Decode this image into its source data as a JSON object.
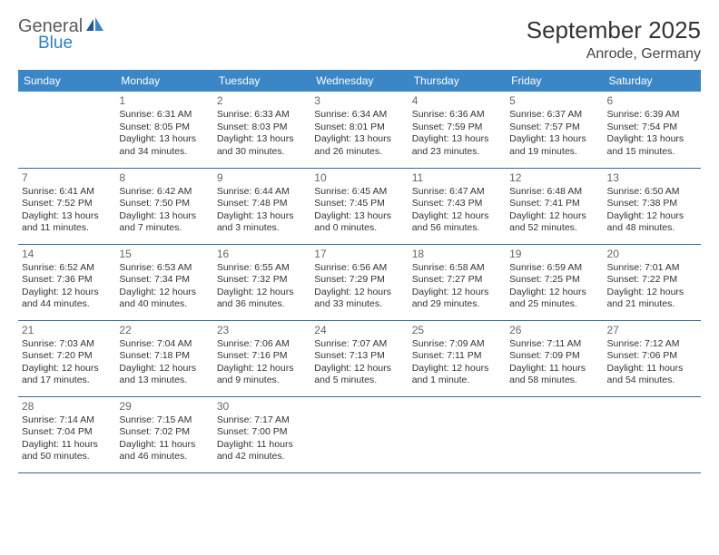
{
  "logo": {
    "line1": "General",
    "line2": "Blue"
  },
  "title": "September 2025",
  "location": "Anrode, Germany",
  "colors": {
    "header_bg": "#3b86c6",
    "header_text": "#ffffff",
    "row_border": "#2f6aa0",
    "title_color": "#333333",
    "location_color": "#444444",
    "logo_gray": "#5a5a5a",
    "logo_blue": "#2f7fc2",
    "daynum_color": "#666666",
    "body_text": "#333333",
    "page_bg": "#ffffff"
  },
  "typography": {
    "title_fontsize": 26,
    "location_fontsize": 16,
    "dayheader_fontsize": 12,
    "daynum_fontsize": 12,
    "cell_fontsize": 10.5
  },
  "days_of_week": [
    "Sunday",
    "Monday",
    "Tuesday",
    "Wednesday",
    "Thursday",
    "Friday",
    "Saturday"
  ],
  "weeks": [
    [
      null,
      {
        "n": "1",
        "sunrise": "Sunrise: 6:31 AM",
        "sunset": "Sunset: 8:05 PM",
        "daylight": "Daylight: 13 hours and 34 minutes."
      },
      {
        "n": "2",
        "sunrise": "Sunrise: 6:33 AM",
        "sunset": "Sunset: 8:03 PM",
        "daylight": "Daylight: 13 hours and 30 minutes."
      },
      {
        "n": "3",
        "sunrise": "Sunrise: 6:34 AM",
        "sunset": "Sunset: 8:01 PM",
        "daylight": "Daylight: 13 hours and 26 minutes."
      },
      {
        "n": "4",
        "sunrise": "Sunrise: 6:36 AM",
        "sunset": "Sunset: 7:59 PM",
        "daylight": "Daylight: 13 hours and 23 minutes."
      },
      {
        "n": "5",
        "sunrise": "Sunrise: 6:37 AM",
        "sunset": "Sunset: 7:57 PM",
        "daylight": "Daylight: 13 hours and 19 minutes."
      },
      {
        "n": "6",
        "sunrise": "Sunrise: 6:39 AM",
        "sunset": "Sunset: 7:54 PM",
        "daylight": "Daylight: 13 hours and 15 minutes."
      }
    ],
    [
      {
        "n": "7",
        "sunrise": "Sunrise: 6:41 AM",
        "sunset": "Sunset: 7:52 PM",
        "daylight": "Daylight: 13 hours and 11 minutes."
      },
      {
        "n": "8",
        "sunrise": "Sunrise: 6:42 AM",
        "sunset": "Sunset: 7:50 PM",
        "daylight": "Daylight: 13 hours and 7 minutes."
      },
      {
        "n": "9",
        "sunrise": "Sunrise: 6:44 AM",
        "sunset": "Sunset: 7:48 PM",
        "daylight": "Daylight: 13 hours and 3 minutes."
      },
      {
        "n": "10",
        "sunrise": "Sunrise: 6:45 AM",
        "sunset": "Sunset: 7:45 PM",
        "daylight": "Daylight: 13 hours and 0 minutes."
      },
      {
        "n": "11",
        "sunrise": "Sunrise: 6:47 AM",
        "sunset": "Sunset: 7:43 PM",
        "daylight": "Daylight: 12 hours and 56 minutes."
      },
      {
        "n": "12",
        "sunrise": "Sunrise: 6:48 AM",
        "sunset": "Sunset: 7:41 PM",
        "daylight": "Daylight: 12 hours and 52 minutes."
      },
      {
        "n": "13",
        "sunrise": "Sunrise: 6:50 AM",
        "sunset": "Sunset: 7:38 PM",
        "daylight": "Daylight: 12 hours and 48 minutes."
      }
    ],
    [
      {
        "n": "14",
        "sunrise": "Sunrise: 6:52 AM",
        "sunset": "Sunset: 7:36 PM",
        "daylight": "Daylight: 12 hours and 44 minutes."
      },
      {
        "n": "15",
        "sunrise": "Sunrise: 6:53 AM",
        "sunset": "Sunset: 7:34 PM",
        "daylight": "Daylight: 12 hours and 40 minutes."
      },
      {
        "n": "16",
        "sunrise": "Sunrise: 6:55 AM",
        "sunset": "Sunset: 7:32 PM",
        "daylight": "Daylight: 12 hours and 36 minutes."
      },
      {
        "n": "17",
        "sunrise": "Sunrise: 6:56 AM",
        "sunset": "Sunset: 7:29 PM",
        "daylight": "Daylight: 12 hours and 33 minutes."
      },
      {
        "n": "18",
        "sunrise": "Sunrise: 6:58 AM",
        "sunset": "Sunset: 7:27 PM",
        "daylight": "Daylight: 12 hours and 29 minutes."
      },
      {
        "n": "19",
        "sunrise": "Sunrise: 6:59 AM",
        "sunset": "Sunset: 7:25 PM",
        "daylight": "Daylight: 12 hours and 25 minutes."
      },
      {
        "n": "20",
        "sunrise": "Sunrise: 7:01 AM",
        "sunset": "Sunset: 7:22 PM",
        "daylight": "Daylight: 12 hours and 21 minutes."
      }
    ],
    [
      {
        "n": "21",
        "sunrise": "Sunrise: 7:03 AM",
        "sunset": "Sunset: 7:20 PM",
        "daylight": "Daylight: 12 hours and 17 minutes."
      },
      {
        "n": "22",
        "sunrise": "Sunrise: 7:04 AM",
        "sunset": "Sunset: 7:18 PM",
        "daylight": "Daylight: 12 hours and 13 minutes."
      },
      {
        "n": "23",
        "sunrise": "Sunrise: 7:06 AM",
        "sunset": "Sunset: 7:16 PM",
        "daylight": "Daylight: 12 hours and 9 minutes."
      },
      {
        "n": "24",
        "sunrise": "Sunrise: 7:07 AM",
        "sunset": "Sunset: 7:13 PM",
        "daylight": "Daylight: 12 hours and 5 minutes."
      },
      {
        "n": "25",
        "sunrise": "Sunrise: 7:09 AM",
        "sunset": "Sunset: 7:11 PM",
        "daylight": "Daylight: 12 hours and 1 minute."
      },
      {
        "n": "26",
        "sunrise": "Sunrise: 7:11 AM",
        "sunset": "Sunset: 7:09 PM",
        "daylight": "Daylight: 11 hours and 58 minutes."
      },
      {
        "n": "27",
        "sunrise": "Sunrise: 7:12 AM",
        "sunset": "Sunset: 7:06 PM",
        "daylight": "Daylight: 11 hours and 54 minutes."
      }
    ],
    [
      {
        "n": "28",
        "sunrise": "Sunrise: 7:14 AM",
        "sunset": "Sunset: 7:04 PM",
        "daylight": "Daylight: 11 hours and 50 minutes."
      },
      {
        "n": "29",
        "sunrise": "Sunrise: 7:15 AM",
        "sunset": "Sunset: 7:02 PM",
        "daylight": "Daylight: 11 hours and 46 minutes."
      },
      {
        "n": "30",
        "sunrise": "Sunrise: 7:17 AM",
        "sunset": "Sunset: 7:00 PM",
        "daylight": "Daylight: 11 hours and 42 minutes."
      },
      null,
      null,
      null,
      null
    ]
  ]
}
